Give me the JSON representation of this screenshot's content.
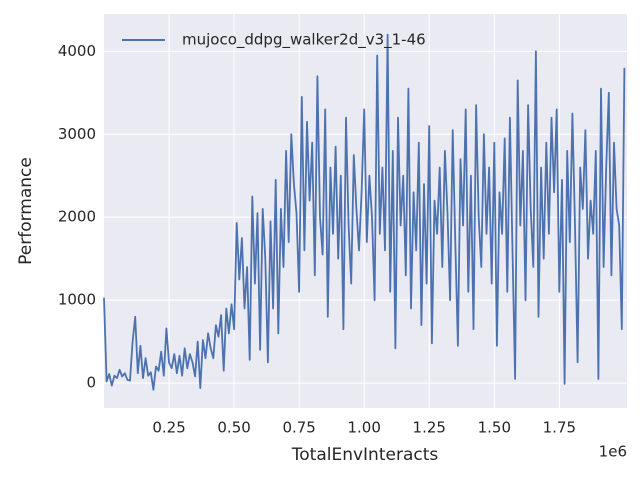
{
  "chart_data": {
    "type": "line",
    "xlabel": "TotalEnvInteracts",
    "ylabel": "Performance",
    "x_offset_label": "1e6",
    "x": [
      0,
      10000,
      20000,
      30000,
      40000,
      50000,
      60000,
      70000,
      80000,
      90000,
      100000,
      110000,
      120000,
      130000,
      140000,
      150000,
      160000,
      170000,
      180000,
      190000,
      200000,
      210000,
      220000,
      230000,
      240000,
      250000,
      260000,
      270000,
      280000,
      290000,
      300000,
      310000,
      320000,
      330000,
      340000,
      350000,
      360000,
      370000,
      380000,
      390000,
      400000,
      410000,
      420000,
      430000,
      440000,
      450000,
      460000,
      470000,
      480000,
      490000,
      500000,
      510000,
      520000,
      530000,
      540000,
      550000,
      560000,
      570000,
      580000,
      590000,
      600000,
      610000,
      620000,
      630000,
      640000,
      650000,
      660000,
      670000,
      680000,
      690000,
      700000,
      710000,
      720000,
      730000,
      740000,
      750000,
      760000,
      770000,
      780000,
      790000,
      800000,
      810000,
      820000,
      830000,
      840000,
      850000,
      860000,
      870000,
      880000,
      890000,
      900000,
      910000,
      920000,
      930000,
      940000,
      950000,
      960000,
      970000,
      980000,
      990000,
      1000000,
      1010000,
      1020000,
      1030000,
      1040000,
      1050000,
      1060000,
      1070000,
      1080000,
      1090000,
      1100000,
      1110000,
      1120000,
      1130000,
      1140000,
      1150000,
      1160000,
      1170000,
      1180000,
      1190000,
      1200000,
      1210000,
      1220000,
      1230000,
      1240000,
      1250000,
      1260000,
      1270000,
      1280000,
      1290000,
      1300000,
      1310000,
      1320000,
      1330000,
      1340000,
      1350000,
      1360000,
      1370000,
      1380000,
      1390000,
      1400000,
      1410000,
      1420000,
      1430000,
      1440000,
      1450000,
      1460000,
      1470000,
      1480000,
      1490000,
      1500000,
      1510000,
      1520000,
      1530000,
      1540000,
      1550000,
      1560000,
      1570000,
      1580000,
      1590000,
      1600000,
      1610000,
      1620000,
      1630000,
      1640000,
      1650000,
      1660000,
      1670000,
      1680000,
      1690000,
      1700000,
      1710000,
      1720000,
      1730000,
      1740000,
      1750000,
      1760000,
      1770000,
      1780000,
      1790000,
      1800000,
      1810000,
      1820000,
      1830000,
      1840000,
      1850000,
      1860000,
      1870000,
      1880000,
      1890000,
      1900000,
      1910000,
      1920000,
      1930000,
      1940000,
      1950000,
      1960000,
      1970000,
      1980000,
      1990000,
      2000000
    ],
    "series": [
      {
        "name": "mujoco_ddpg_walker2d_v3_1-46",
        "color": "#4c72b0",
        "values": [
          1030,
          20,
          110,
          -30,
          90,
          60,
          160,
          80,
          120,
          40,
          30,
          500,
          800,
          120,
          450,
          60,
          300,
          90,
          130,
          -80,
          200,
          150,
          380,
          90,
          660,
          250,
          180,
          350,
          120,
          330,
          90,
          420,
          180,
          350,
          250,
          80,
          500,
          -60,
          520,
          300,
          600,
          420,
          300,
          700,
          560,
          820,
          150,
          900,
          600,
          950,
          650,
          1930,
          1250,
          1750,
          900,
          1400,
          280,
          2250,
          1200,
          2050,
          400,
          2100,
          1500,
          250,
          1950,
          900,
          2450,
          600,
          2100,
          1400,
          2800,
          1700,
          3000,
          2400,
          2050,
          1100,
          3450,
          1600,
          3150,
          2200,
          2900,
          1300,
          3700,
          2000,
          1550,
          3300,
          800,
          2600,
          1800,
          2850,
          1500,
          2500,
          650,
          3200,
          1900,
          1200,
          2750,
          2100,
          1600,
          2300,
          3300,
          1700,
          2500,
          2000,
          1000,
          3950,
          1800,
          2600,
          1600,
          4200,
          1100,
          2800,
          420,
          3200,
          1900,
          2500,
          1300,
          3550,
          900,
          2300,
          1600,
          2900,
          700,
          2400,
          1200,
          3100,
          480,
          2200,
          1800,
          2600,
          1400,
          2800,
          2050,
          1000,
          3050,
          1700,
          450,
          2700,
          1900,
          3300,
          1100,
          2500,
          650,
          3350,
          2000,
          1400,
          3000,
          1800,
          2600,
          1200,
          2900,
          450,
          2300,
          1800,
          2950,
          1100,
          3200,
          1600,
          50,
          3650,
          1900,
          2800,
          1000,
          3350,
          2100,
          1400,
          4000,
          800,
          2600,
          1500,
          2900,
          1800,
          3200,
          2300,
          3300,
          1100,
          2450,
          -10,
          2800,
          1700,
          3250,
          1900,
          250,
          2600,
          2100,
          3050,
          1500,
          2200,
          1800,
          2800,
          50,
          3550,
          1400,
          2600,
          3500,
          1300,
          2900,
          2100,
          1900,
          650,
          3800
        ]
      }
    ],
    "xlim": [
      0,
      2010000
    ],
    "ylim": [
      -300,
      4450
    ],
    "xticks": [
      {
        "value": 250000,
        "label": "0.25"
      },
      {
        "value": 500000,
        "label": "0.50"
      },
      {
        "value": 750000,
        "label": "0.75"
      },
      {
        "value": 1000000,
        "label": "1.00"
      },
      {
        "value": 1250000,
        "label": "1.25"
      },
      {
        "value": 1500000,
        "label": "1.50"
      },
      {
        "value": 1750000,
        "label": "1.75"
      }
    ],
    "yticks": [
      0,
      1000,
      2000,
      3000,
      4000
    ],
    "grid": true,
    "legend": "upper left"
  }
}
